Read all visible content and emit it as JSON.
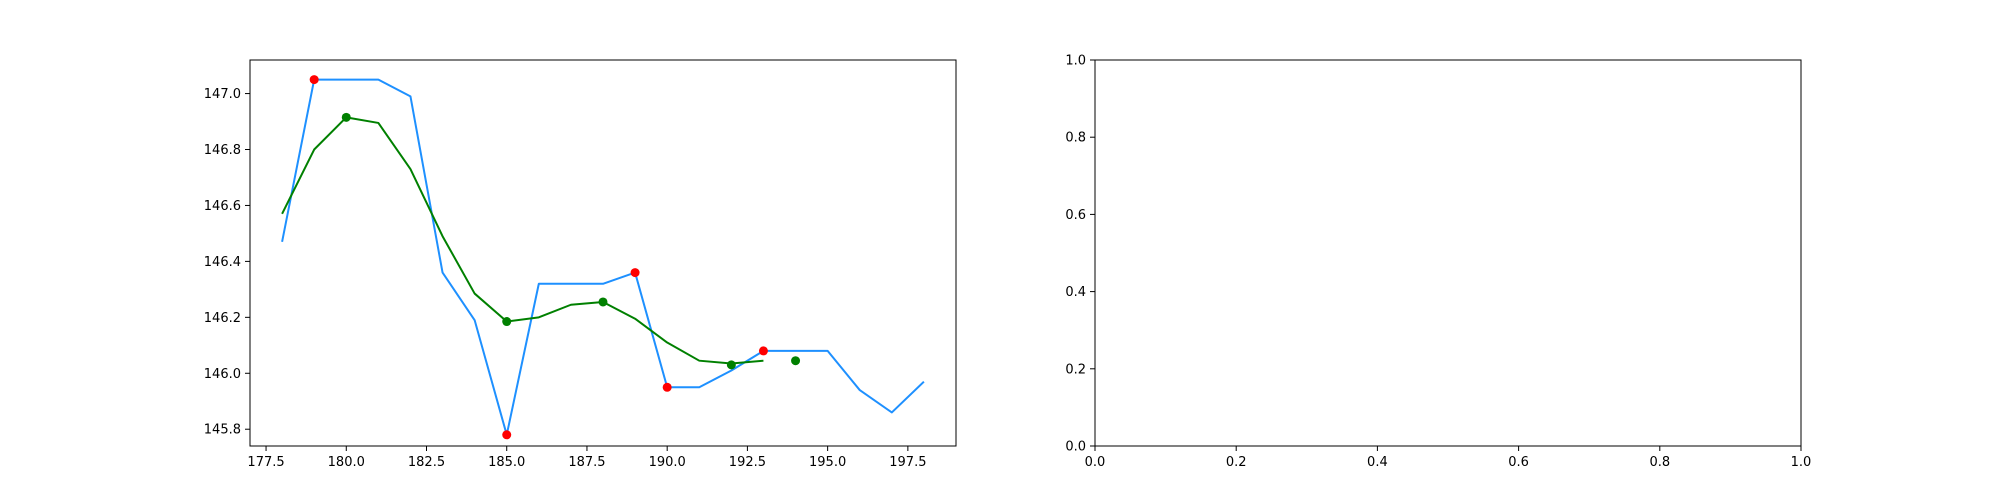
{
  "chart_data": [
    {
      "type": "line",
      "title": "",
      "xlabel": "",
      "ylabel": "",
      "xlim": [
        177.0,
        199.0
      ],
      "ylim": [
        145.74,
        147.12
      ],
      "xticks": [
        177.5,
        180.0,
        182.5,
        185.0,
        187.5,
        190.0,
        192.5,
        195.0,
        197.5
      ],
      "xtick_labels": [
        "177.5",
        "180.0",
        "182.5",
        "185.0",
        "187.5",
        "190.0",
        "192.5",
        "195.0",
        "197.5"
      ],
      "yticks": [
        145.8,
        146.0,
        146.2,
        146.4,
        146.6,
        146.8,
        147.0
      ],
      "ytick_labels": [
        "145.8",
        "146.0",
        "146.2",
        "146.4",
        "146.6",
        "146.8",
        "147.0"
      ],
      "grid": false,
      "series": [
        {
          "kind": "line",
          "color": "#1e90ff",
          "x": [
            178,
            179,
            180,
            181,
            182,
            183,
            184,
            185,
            186,
            187,
            188,
            189,
            190,
            191,
            192,
            193,
            194,
            195,
            196,
            197,
            198
          ],
          "y": [
            146.47,
            147.05,
            147.05,
            147.05,
            146.99,
            146.36,
            146.19,
            145.78,
            146.32,
            146.32,
            146.32,
            146.36,
            145.95,
            145.95,
            146.01,
            146.08,
            146.08,
            146.08,
            145.94,
            145.86,
            145.97
          ]
        },
        {
          "kind": "line",
          "color": "#008000",
          "x": [
            178,
            179,
            180,
            181,
            182,
            183,
            184,
            185,
            186,
            187,
            188,
            189,
            190,
            191,
            192,
            193
          ],
          "y": [
            146.57,
            146.8,
            146.915,
            146.895,
            146.73,
            146.49,
            146.285,
            146.185,
            146.2,
            146.245,
            146.255,
            146.195,
            146.11,
            146.045,
            146.035,
            146.045
          ]
        },
        {
          "kind": "scatter",
          "color": "#ff0000",
          "x": [
            179,
            185,
            189,
            190,
            193
          ],
          "y": [
            147.05,
            145.78,
            146.36,
            145.95,
            146.08
          ]
        },
        {
          "kind": "scatter",
          "color": "#008000",
          "x": [
            180,
            185,
            188,
            192,
            194
          ],
          "y": [
            146.915,
            146.185,
            146.255,
            146.03,
            146.045
          ]
        }
      ]
    },
    {
      "type": "line",
      "title": "",
      "xlabel": "",
      "ylabel": "",
      "xlim": [
        0.0,
        1.0
      ],
      "ylim": [
        0.0,
        1.0
      ],
      "xticks": [
        0.0,
        0.2,
        0.4,
        0.6,
        0.8,
        1.0
      ],
      "xtick_labels": [
        "0.0",
        "0.2",
        "0.4",
        "0.6",
        "0.8",
        "1.0"
      ],
      "yticks": [
        0.0,
        0.2,
        0.4,
        0.6,
        0.8,
        1.0
      ],
      "ytick_labels": [
        "0.0",
        "0.2",
        "0.4",
        "0.6",
        "0.8",
        "1.0"
      ],
      "grid": false,
      "series": []
    }
  ]
}
